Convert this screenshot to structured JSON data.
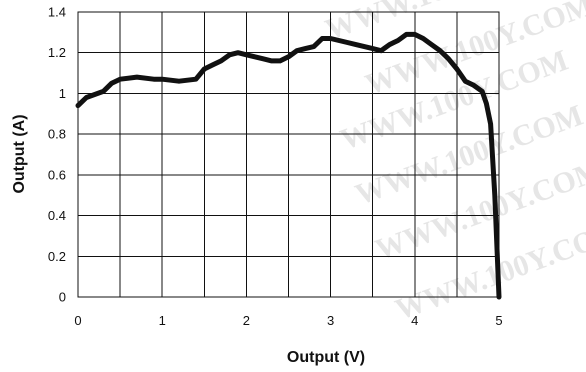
{
  "chart_data": {
    "type": "line",
    "title": "",
    "xlabel": "Output (V)",
    "ylabel": "Output (A)",
    "xlim": [
      0,
      5
    ],
    "ylim": [
      0,
      1.4
    ],
    "x_ticks": [
      0,
      1,
      2,
      3,
      4,
      5
    ],
    "y_ticks": [
      0,
      0.2,
      0.4,
      0.6,
      0.8,
      1,
      1.2,
      1.4
    ],
    "x_tick_labels": [
      "0",
      "1",
      "2",
      "3",
      "4",
      "5"
    ],
    "y_tick_labels": [
      "0",
      "0.2",
      "0.4",
      "0.6",
      "0.8",
      "1",
      "1.2",
      "1.4"
    ],
    "grid": true,
    "legend": "none",
    "watermark": "WWW.100Y.COM",
    "series": [
      {
        "color": "#111111",
        "x": [
          0,
          0.1,
          0.3,
          0.4,
          0.5,
          0.7,
          0.9,
          1.0,
          1.2,
          1.4,
          1.5,
          1.6,
          1.7,
          1.8,
          1.9,
          2.0,
          2.1,
          2.2,
          2.3,
          2.4,
          2.5,
          2.6,
          2.7,
          2.8,
          2.9,
          3.0,
          3.1,
          3.2,
          3.3,
          3.4,
          3.5,
          3.6,
          3.7,
          3.75,
          3.8,
          3.9,
          4.0,
          4.1,
          4.2,
          4.3,
          4.4,
          4.5,
          4.6,
          4.7,
          4.8,
          4.85,
          4.9,
          4.95,
          5.0
        ],
        "y": [
          0.94,
          0.98,
          1.01,
          1.05,
          1.07,
          1.08,
          1.07,
          1.07,
          1.06,
          1.07,
          1.12,
          1.14,
          1.16,
          1.19,
          1.2,
          1.19,
          1.18,
          1.17,
          1.16,
          1.16,
          1.18,
          1.21,
          1.22,
          1.23,
          1.27,
          1.27,
          1.26,
          1.25,
          1.24,
          1.23,
          1.22,
          1.21,
          1.24,
          1.25,
          1.26,
          1.29,
          1.29,
          1.27,
          1.24,
          1.21,
          1.17,
          1.12,
          1.06,
          1.04,
          1.01,
          0.95,
          0.85,
          0.5,
          0.0
        ]
      }
    ]
  }
}
